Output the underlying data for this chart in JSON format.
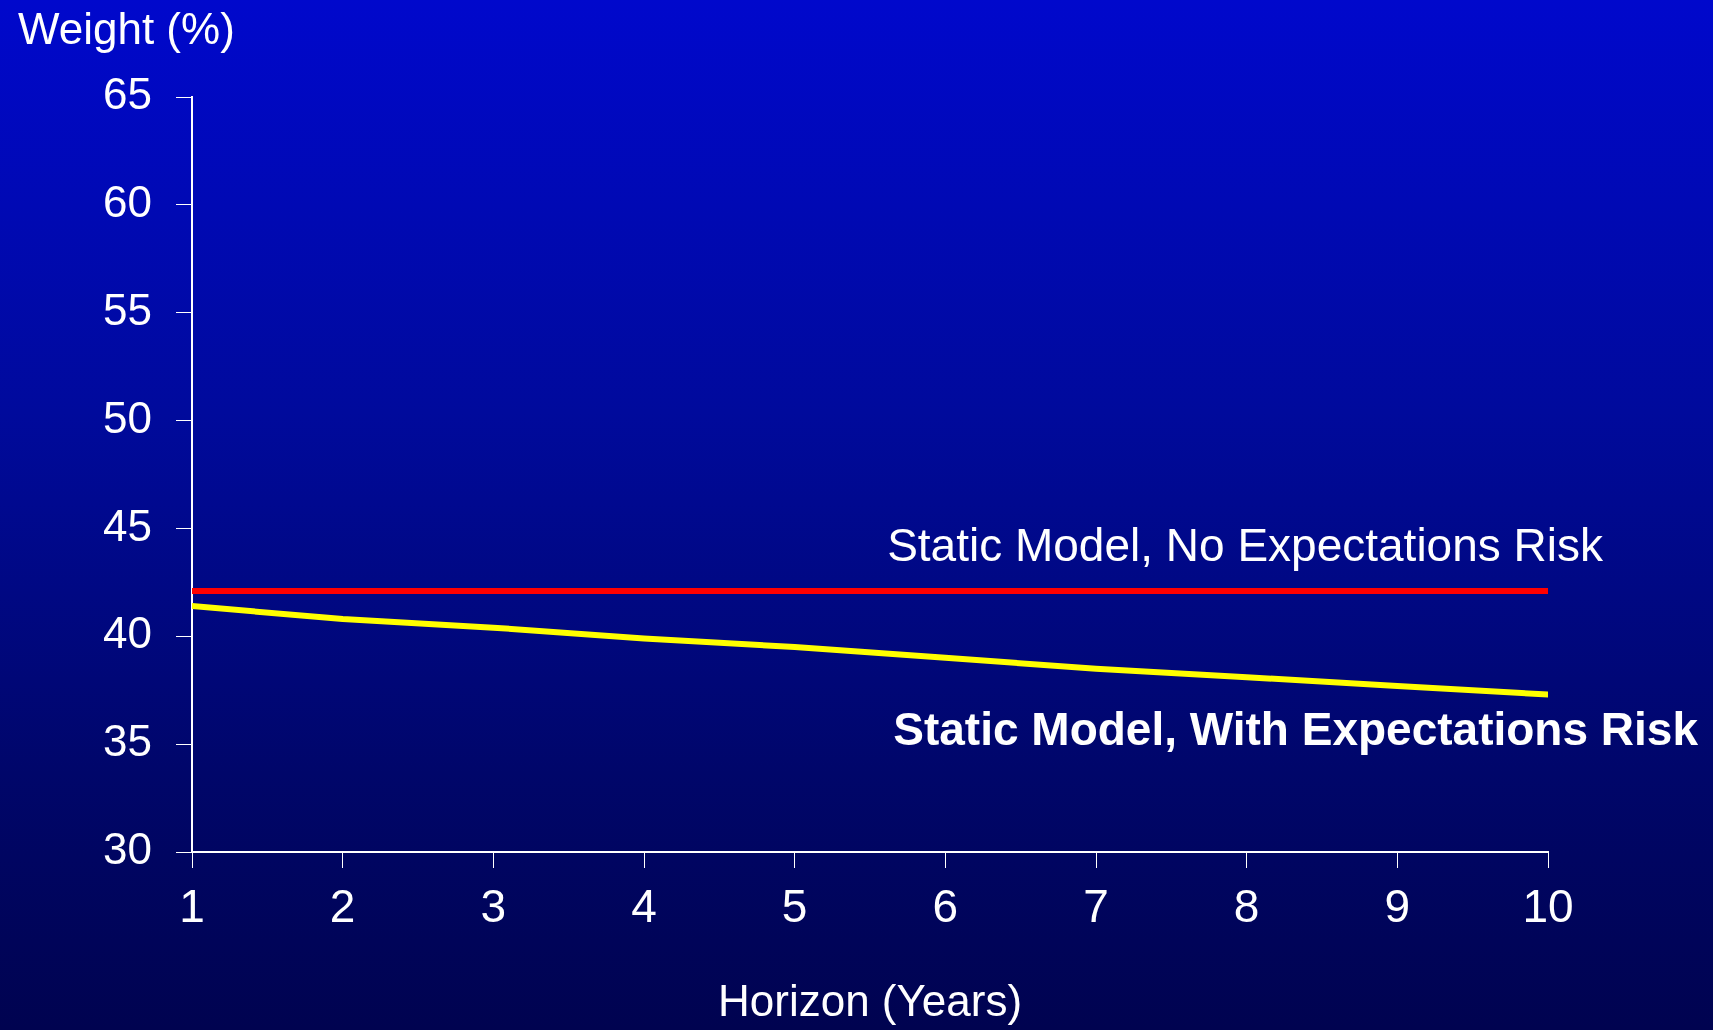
{
  "chart_data": {
    "type": "line",
    "xlabel": "Horizon (Years)",
    "ylabel": "Weight (%)",
    "x": [
      1,
      2,
      3,
      4,
      5,
      6,
      7,
      8,
      9,
      10
    ],
    "series": [
      {
        "name": "Static Model, No Expectations Risk",
        "color": "#ff0000",
        "values": [
          42.1,
          42.1,
          42.1,
          42.1,
          42.1,
          42.1,
          42.1,
          42.1,
          42.1,
          42.1
        ]
      },
      {
        "name": "Static Model, With Expectations Risk",
        "color": "#ffff00",
        "values": [
          41.4,
          40.8,
          40.4,
          39.9,
          39.5,
          39.0,
          38.5,
          38.1,
          37.7,
          37.3
        ]
      }
    ],
    "xlim": [
      1,
      10
    ],
    "xticks": [
      1,
      2,
      3,
      4,
      5,
      6,
      7,
      8,
      9,
      10
    ],
    "ylim": [
      30,
      65
    ],
    "yticks": [
      30,
      35,
      40,
      45,
      50,
      55,
      60,
      65
    ],
    "grid": false,
    "legend": false,
    "marker": "none",
    "line_style": "solid"
  }
}
